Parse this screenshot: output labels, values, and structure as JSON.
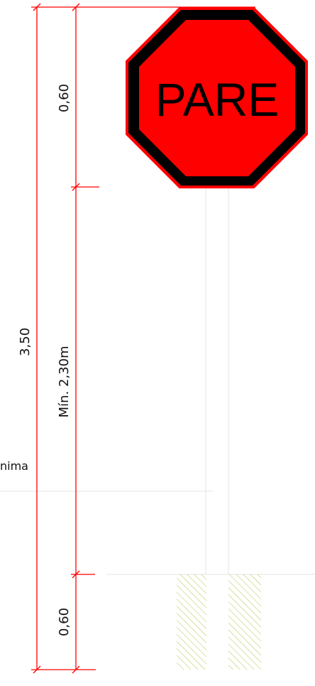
{
  "dimensions": {
    "total_height": "3,50",
    "top_sign": "0,60",
    "min_clearance": "Mín. 2,30m",
    "bottom_base": "0,60",
    "side_partial": "nima"
  },
  "sign": {
    "text": "PARE",
    "shape": "octagon",
    "fill_color": "#ff0000",
    "border_color": "#000000",
    "outline_color": "#ff0000"
  },
  "colors": {
    "dimension_line": "#ff0000",
    "hatch": "#b8c24a",
    "construction_line": "#d8d8d8"
  }
}
